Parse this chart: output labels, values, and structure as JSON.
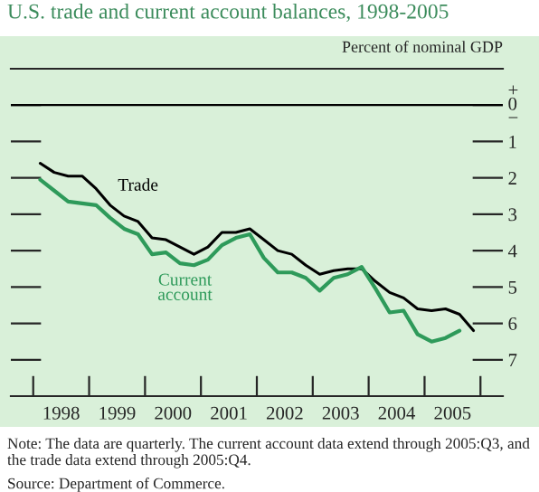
{
  "chart_data": {
    "type": "line",
    "title": "U.S. trade and current account balances, 1998-2005",
    "ylabel": "Percent of nominal GDP",
    "x": [
      1998.125,
      1998.375,
      1998.625,
      1998.875,
      1999.125,
      1999.375,
      1999.625,
      1999.875,
      2000.125,
      2000.375,
      2000.625,
      2000.875,
      2001.125,
      2001.375,
      2001.625,
      2001.875,
      2002.125,
      2002.375,
      2002.625,
      2002.875,
      2003.125,
      2003.375,
      2003.625,
      2003.875,
      2004.125,
      2004.375,
      2004.625,
      2004.875,
      2005.125,
      2005.375,
      2005.625,
      2005.875
    ],
    "series": [
      {
        "name": "Trade",
        "color": "#000000",
        "values": [
          -1.6,
          -1.85,
          -1.95,
          -1.95,
          -2.3,
          -2.75,
          -3.05,
          -3.2,
          -3.65,
          -3.7,
          -3.9,
          -4.1,
          -3.9,
          -3.5,
          -3.5,
          -3.4,
          -3.7,
          -4.0,
          -4.1,
          -4.4,
          -4.65,
          -4.55,
          -4.5,
          -4.5,
          -4.85,
          -5.15,
          -5.3,
          -5.6,
          -5.65,
          -5.6,
          -5.75,
          -6.2
        ]
      },
      {
        "name": "Current account",
        "color": "#2e9a5a",
        "values": [
          -2.05,
          -2.35,
          -2.65,
          -2.7,
          -2.75,
          -3.1,
          -3.4,
          -3.55,
          -4.1,
          -4.05,
          -4.35,
          -4.4,
          -4.25,
          -3.85,
          -3.65,
          -3.55,
          -4.2,
          -4.6,
          -4.6,
          -4.75,
          -5.1,
          -4.75,
          -4.65,
          -4.45,
          -5.05,
          -5.7,
          -5.65,
          -6.3,
          -6.5,
          -6.4,
          -6.2,
          null
        ]
      }
    ],
    "xlim": [
      1997.6,
      2006.4
    ],
    "xticks": [
      {
        "value": 1998,
        "label": null
      },
      {
        "value": 1998.5,
        "label": "1998"
      },
      {
        "value": 1999,
        "label": null
      },
      {
        "value": 1999.5,
        "label": "1999"
      },
      {
        "value": 2000,
        "label": null
      },
      {
        "value": 2000.5,
        "label": "2000"
      },
      {
        "value": 2001,
        "label": null
      },
      {
        "value": 2001.5,
        "label": "2001"
      },
      {
        "value": 2002,
        "label": null
      },
      {
        "value": 2002.5,
        "label": "2002"
      },
      {
        "value": 2003,
        "label": null
      },
      {
        "value": 2003.5,
        "label": "2003"
      },
      {
        "value": 2004,
        "label": null
      },
      {
        "value": 2004.5,
        "label": "2004"
      },
      {
        "value": 2005,
        "label": null
      },
      {
        "value": 2005.5,
        "label": "2005"
      },
      {
        "value": 2006,
        "label": null
      }
    ],
    "ylim": [
      -8,
      1
    ],
    "yticks": [
      {
        "value": 0,
        "label": "+\n0\n−"
      },
      {
        "value": -1,
        "label": "1"
      },
      {
        "value": -2,
        "label": "2"
      },
      {
        "value": -3,
        "label": "3"
      },
      {
        "value": -4,
        "label": "4"
      },
      {
        "value": -5,
        "label": "5"
      },
      {
        "value": -6,
        "label": "6"
      },
      {
        "value": -7,
        "label": "7"
      }
    ],
    "ref_lines": [
      {
        "axis": "y",
        "value": 0,
        "color": "#000000"
      }
    ],
    "grid": false,
    "legend": false,
    "marker": "none",
    "line_style": "solid",
    "annotations": [
      "Note: The data are quarterly. The current account data extend through 2005:Q3, and the trade data extend through 2005:Q4.",
      "Source: Department of Commerce."
    ]
  }
}
